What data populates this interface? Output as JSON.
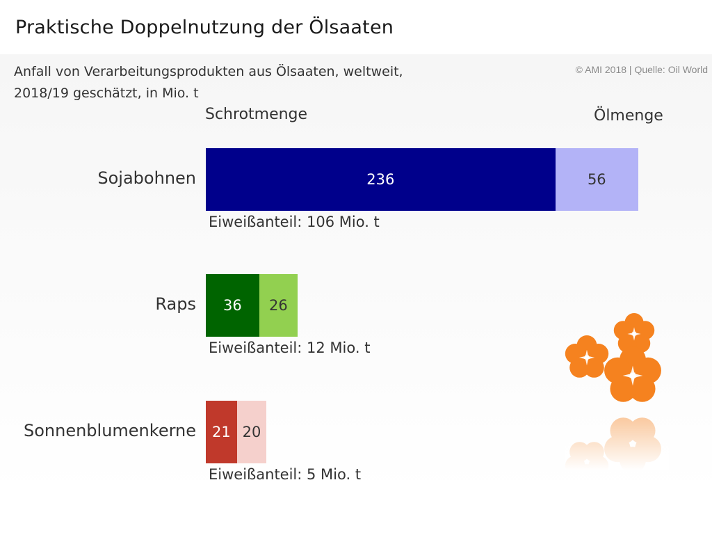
{
  "title": "Praktische Doppelnutzung der Ölsaaten",
  "subtitle_line1": "Anfall von Verarbeitungsprodukten aus Ölsaaten, weltweit,",
  "subtitle_line2": "2018/19 geschätzt, in Mio. t",
  "credit": "© AMI 2018 | Quelle: Oil World",
  "chart_data": {
    "type": "bar",
    "orientation": "horizontal",
    "stacked": true,
    "categories": [
      "Sojabohnen",
      "Raps",
      "Sonnenblumenkerne"
    ],
    "series": [
      {
        "name": "Schrotmenge",
        "values": [
          236,
          36,
          21
        ],
        "colors": [
          "#00008b",
          "#006400",
          "#c0392b"
        ]
      },
      {
        "name": "Ölmenge",
        "values": [
          56,
          26,
          20
        ],
        "colors": [
          "#b3b3f7",
          "#92d050",
          "#f5d0cc"
        ]
      }
    ],
    "annotations": [
      "Eiweißanteil: 106 Mio. t",
      "Eiweißanteil: 12 Mio. t",
      "Eiweißanteil: 5 Mio. t"
    ],
    "value_labels": {
      "meal": [
        "236",
        "36",
        "21"
      ],
      "oil": [
        "56",
        "26",
        "20"
      ]
    },
    "grid": false,
    "legend": "top"
  }
}
